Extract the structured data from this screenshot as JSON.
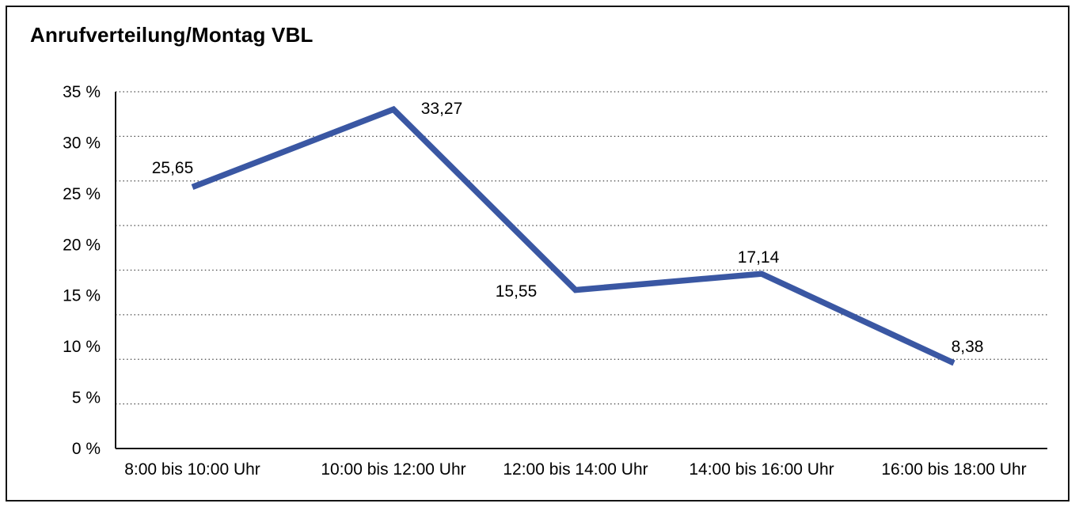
{
  "title": "Anrufverteilung/Montag VBL",
  "chart_data": {
    "type": "line",
    "title": "Anrufverteilung/Montag VBL",
    "categories": [
      "8:00 bis 10:00 Uhr",
      "10:00 bis 12:00 Uhr",
      "12:00 bis 14:00 Uhr",
      "14:00 bis 16:00 Uhr",
      "16:00 bis 18:00 Uhr"
    ],
    "values": [
      25.65,
      33.27,
      15.55,
      17.14,
      8.38
    ],
    "value_labels": [
      "25,65",
      "33,27",
      "15,55",
      "17,14",
      "8,38"
    ],
    "xlabel": "",
    "ylabel": "",
    "y_axis": {
      "min": 0,
      "max": 35,
      "tick_step": 5,
      "tick_labels": [
        "0 %",
        "5 %",
        "10 %",
        "15 %",
        "20 %",
        "25 %",
        "30 %",
        "35 %"
      ]
    },
    "grid": "horizontal-dotted",
    "gridline_intervals": 8,
    "legend": "none",
    "line_color": "#3a57a3",
    "axis_color": "#141414",
    "grid_color": "#4a4a4a",
    "text_color": "#000000",
    "background": "#ffffff"
  }
}
